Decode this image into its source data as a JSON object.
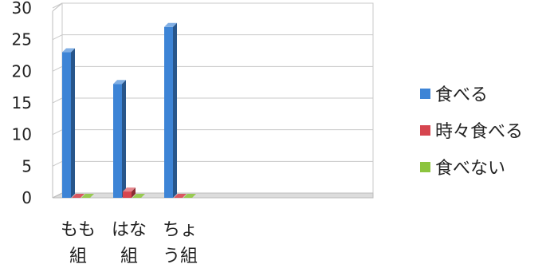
{
  "chart_data": {
    "type": "bar",
    "categories": [
      "もも組",
      "はな組",
      "ちょう組"
    ],
    "category_lines": [
      [
        "もも",
        "組"
      ],
      [
        "はな",
        "組"
      ],
      [
        "ちょ",
        "う組"
      ]
    ],
    "series": [
      {
        "name": "食べる",
        "values": [
          23,
          18,
          27
        ],
        "color": "#3d84d6"
      },
      {
        "name": "時々食べる",
        "values": [
          0,
          1,
          0
        ],
        "color": "#d6454f"
      },
      {
        "name": "食べない",
        "values": [
          0,
          0,
          0
        ],
        "color": "#8cc43e"
      }
    ],
    "yticks": [
      "0",
      "5",
      "10",
      "15",
      "20",
      "25",
      "30"
    ],
    "ylim": [
      0,
      30
    ],
    "grid": true,
    "legend": "right"
  }
}
